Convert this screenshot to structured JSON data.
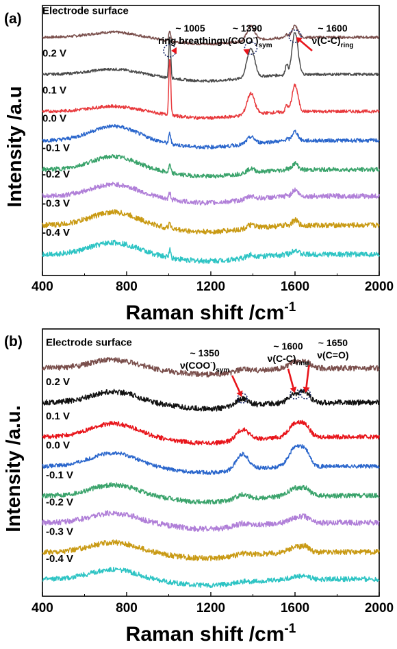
{
  "chart_data": [
    {
      "panel_label": "(a)",
      "type": "line",
      "xlabel": "Raman shift /cm",
      "xlabel_sup": "-1",
      "ylabel": "Intensity /a.u",
      "xlim": [
        400,
        2000
      ],
      "xticks": [
        "400",
        "800",
        "1200",
        "1600",
        "2000"
      ],
      "y_ticks_shown": false,
      "grid": false,
      "legend": "none; series labelled inline at the left of each trace",
      "series": [
        {
          "name": "Electrode surface",
          "color": "#7a4f4c",
          "baseline": 9.4,
          "pk_brd": 0.2,
          "pk_1005": 0.4,
          "pk_1390": 0.55,
          "pk_1600": 0.45,
          "noise": 0.05
        },
        {
          "name": "0.2 V",
          "color": "#4a4a4a",
          "baseline": 8.0,
          "pk_brd": 0.2,
          "pk_1005": 1.6,
          "pk_1390": 1.1,
          "pk_1600": 1.6,
          "noise": 0.05
        },
        {
          "name": "0.1 V",
          "color": "#e8393c",
          "baseline": 6.6,
          "pk_brd": 0.2,
          "pk_1005": 2.2,
          "pk_1390": 0.8,
          "pk_1600": 1.0,
          "noise": 0.06
        },
        {
          "name": "0.0 V",
          "color": "#2a66cc",
          "baseline": 5.5,
          "pk_brd": 0.55,
          "pk_1005": 0.4,
          "pk_1390": 0.25,
          "pk_1600": 0.35,
          "noise": 0.07
        },
        {
          "name": "-0.1 V",
          "color": "#3aa36b",
          "baseline": 4.4,
          "pk_brd": 0.5,
          "pk_1005": 0.3,
          "pk_1390": 0.15,
          "pk_1600": 0.25,
          "noise": 0.08
        },
        {
          "name": "-0.2 V",
          "color": "#b07fd8",
          "baseline": 3.4,
          "pk_brd": 0.45,
          "pk_1005": 0.25,
          "pk_1390": 0.12,
          "pk_1600": 0.25,
          "noise": 0.09
        },
        {
          "name": "-0.3 V",
          "color": "#c99a14",
          "baseline": 2.3,
          "pk_brd": 0.5,
          "pk_1005": 0.25,
          "pk_1390": 0.12,
          "pk_1600": 0.2,
          "noise": 0.1
        },
        {
          "name": "-0.4 V",
          "color": "#2ec4c4",
          "baseline": 1.2,
          "pk_brd": 0.45,
          "pk_1005": 0.3,
          "pk_1390": 0.1,
          "pk_1600": 0.2,
          "noise": 0.1
        }
      ],
      "annotations": [
        {
          "line1": "~ 1005",
          "line2": "ring breathing",
          "line2_sub": "",
          "x": 1005,
          "marker_series": "0.2 V"
        },
        {
          "line1": "~ 1390",
          "line2": "ν(COO",
          "line2_sup": "-",
          "line2_tail": ")",
          "line2_sub": "sym",
          "x": 1390,
          "marker_series": "0.2 V"
        },
        {
          "line1": "~ 1600",
          "line2": "ν(C-C)",
          "line2_sub": "ring",
          "x": 1600,
          "marker_series": "0.2 V"
        }
      ]
    },
    {
      "panel_label": "(b)",
      "type": "line",
      "xlabel": "Raman shift /cm",
      "xlabel_sup": "-1",
      "ylabel": "Intensity /a.u.",
      "xlim": [
        400,
        2000
      ],
      "xticks": [
        "400",
        "800",
        "1200",
        "1600",
        "2000"
      ],
      "y_ticks_shown": false,
      "grid": false,
      "legend": "none; series labelled inline at the left of each trace",
      "series": [
        {
          "name": "Electrode surface",
          "color": "#7a4f4c",
          "baseline": 9.3,
          "pk_brd": 0.35,
          "pk_1350": 0.1,
          "pk_1600": 0.25,
          "pk_1650": 0.25,
          "noise": 0.11
        },
        {
          "name": "0.2 V",
          "color": "#111111",
          "baseline": 7.9,
          "pk_brd": 0.45,
          "pk_1350": 0.3,
          "pk_1600": 0.35,
          "pk_1650": 0.35,
          "noise": 0.11
        },
        {
          "name": "0.1 V",
          "color": "#e8141a",
          "baseline": 6.5,
          "pk_brd": 0.55,
          "pk_1350": 0.45,
          "pk_1600": 0.55,
          "pk_1650": 0.4,
          "noise": 0.09
        },
        {
          "name": "0.0 V",
          "color": "#2a66cc",
          "baseline": 5.3,
          "pk_brd": 0.55,
          "pk_1350": 0.65,
          "pk_1600": 0.75,
          "pk_1650": 0.55,
          "noise": 0.08
        },
        {
          "name": "-0.1 V",
          "color": "#3aa36b",
          "baseline": 4.1,
          "pk_brd": 0.45,
          "pk_1350": 0.2,
          "pk_1600": 0.3,
          "pk_1650": 0.25,
          "noise": 0.1
        },
        {
          "name": "-0.2 V",
          "color": "#b07fd8",
          "baseline": 3.0,
          "pk_brd": 0.4,
          "pk_1350": 0.12,
          "pk_1600": 0.2,
          "pk_1650": 0.2,
          "noise": 0.11
        },
        {
          "name": "-0.3 V",
          "color": "#c99a14",
          "baseline": 1.8,
          "pk_brd": 0.4,
          "pk_1350": 0.1,
          "pk_1600": 0.2,
          "pk_1650": 0.2,
          "noise": 0.11
        },
        {
          "name": "-0.4 V",
          "color": "#2ec4c4",
          "baseline": 0.7,
          "pk_brd": 0.4,
          "pk_1350": 0.05,
          "pk_1600": 0.1,
          "pk_1650": 0.1,
          "noise": 0.1
        }
      ],
      "annotations": [
        {
          "line1": "~ 1350",
          "line2": "ν(COO",
          "line2_sup": "-",
          "line2_tail": ")",
          "line2_sub": "sym",
          "x": 1350,
          "marker_series": "0.2 V"
        },
        {
          "line1": "~ 1600",
          "line2": "ν(C-C)",
          "line2_sub": "ring",
          "x": 1600,
          "marker_series": "0.2 V"
        },
        {
          "line1": "~ 1650",
          "line2": "ν(C=O)",
          "line2_sub": "",
          "x": 1650,
          "marker_series": "0.2 V"
        }
      ]
    }
  ]
}
